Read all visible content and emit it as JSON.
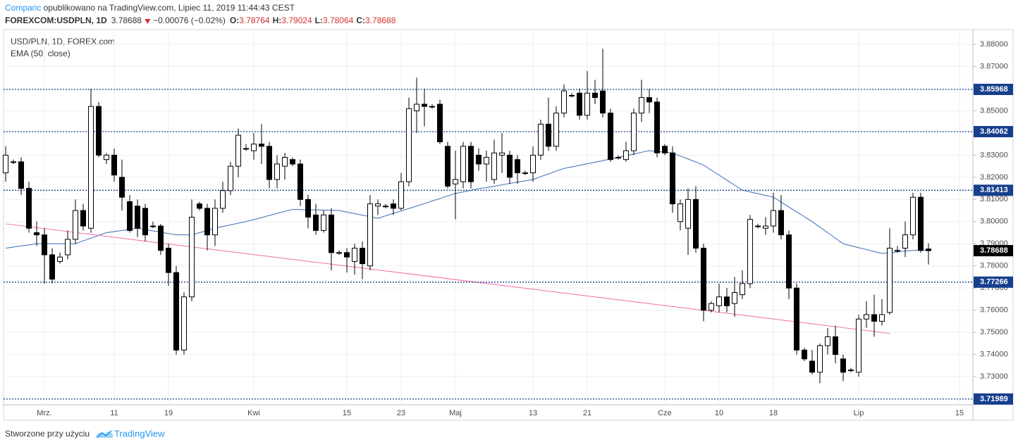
{
  "header": {
    "author": "Comparic",
    "published": " opublikowano na TradingView.com, Lipiec 11, 2019 11:44:43 CEST",
    "symbol": "FOREXCOM:USDPLN, 1D",
    "change": "−0.00076 (−0.02%)",
    "ohlc_labels": [
      "O:",
      "H:",
      "L:",
      "C:"
    ]
  },
  "footer": {
    "made_with": "Stworzone przy użyciu",
    "brand": "TradingView"
  },
  "chart_data": {
    "type": "candlestick",
    "legend": [
      "USD/PLN, 1D, FOREX.com",
      "EMA (50, close)"
    ],
    "up_color": "#ffffff",
    "down_color": "#000000",
    "ema_color": "#3a6db5",
    "categories": [
      null,
      null,
      null,
      null,
      null,
      "Mrz.",
      null,
      null,
      null,
      null,
      null,
      null,
      null,
      null,
      "11",
      null,
      null,
      null,
      null,
      null,
      null,
      "19",
      null,
      null,
      null,
      null,
      null,
      null,
      null,
      null,
      null,
      null,
      "Kwi",
      null,
      null,
      null,
      null,
      null,
      null,
      null,
      null,
      null,
      null,
      null,
      "15",
      null,
      null,
      null,
      null,
      null,
      null,
      "23",
      null,
      null,
      null,
      null,
      null,
      null,
      "Maj",
      null,
      null,
      null,
      null,
      null,
      null,
      null,
      null,
      null,
      "13",
      null,
      null,
      null,
      null,
      null,
      null,
      "21",
      null,
      null,
      null,
      null,
      null,
      null,
      null,
      null,
      null,
      "Cze",
      null,
      null,
      null,
      null,
      null,
      null,
      "10",
      null,
      null,
      null,
      null,
      null,
      null,
      "18",
      null,
      null,
      null,
      null,
      null,
      null,
      null,
      null,
      null,
      null,
      "Lip",
      null,
      null,
      null,
      null,
      null,
      null,
      null,
      null,
      null,
      null,
      null,
      null,
      "15",
      null
    ],
    "open": [
      3.822,
      3.827,
      3.827,
      3.815,
      3.795,
      3.794,
      3.785,
      3.782,
      3.785,
      3.792,
      3.805,
      3.797,
      3.852,
      3.828,
      3.83,
      3.82,
      3.809,
      3.807,
      3.806,
      3.798,
      3.798,
      3.788,
      3.777,
      3.742,
      3.766,
      3.808,
      3.806,
      3.794,
      3.806,
      3.814,
      3.825,
      3.833,
      3.832,
      3.835,
      3.834,
      3.819,
      3.825,
      3.828,
      3.826,
      3.81,
      3.803,
      3.796,
      3.803,
      3.786,
      3.786,
      3.782,
      3.788,
      3.78,
      3.807,
      3.807,
      3.808,
      3.806,
      3.818,
      3.85,
      3.853,
      3.852,
      3.853,
      3.834,
      3.817,
      3.818,
      3.834,
      3.83,
      3.826,
      3.819,
      3.83,
      3.83,
      3.828,
      3.822,
      3.822,
      3.83,
      3.844,
      3.834,
      3.849,
      3.857,
      3.858,
      3.848,
      3.858,
      3.859,
      3.849,
      3.829,
      3.828,
      3.832,
      3.849,
      3.856,
      3.854,
      3.834,
      3.831,
      3.8,
      3.797,
      3.81,
      3.788,
      3.76,
      3.762,
      3.766,
      3.763,
      3.767,
      3.772,
      3.798,
      3.797,
      3.798,
      3.805,
      3.794,
      3.77,
      3.742,
      3.737,
      3.732,
      3.744,
      3.748,
      3.738,
      3.733,
      3.732,
      3.756,
      3.758,
      3.755,
      3.759,
      3.787,
      3.788,
      3.794,
      3.811,
      3.78764,
      null,
      null,
      null,
      null,
      null
    ],
    "high": [
      3.834,
      3.828,
      3.829,
      3.818,
      3.8,
      3.797,
      3.788,
      3.786,
      3.796,
      3.81,
      3.808,
      3.86,
      3.854,
      3.831,
      3.833,
      3.828,
      3.812,
      3.81,
      3.808,
      3.8,
      3.799,
      3.79,
      3.78,
      3.768,
      3.81,
      3.809,
      3.808,
      3.81,
      3.818,
      3.827,
      3.842,
      3.835,
      3.84,
      3.844,
      3.836,
      3.83,
      3.831,
      3.829,
      3.828,
      3.812,
      3.808,
      3.805,
      3.806,
      3.787,
      3.788,
      3.79,
      3.791,
      3.812,
      3.81,
      3.808,
      3.81,
      3.822,
      3.856,
      3.865,
      3.86,
      3.853,
      3.855,
      3.836,
      3.832,
      3.836,
      3.836,
      3.833,
      3.832,
      3.837,
      3.84,
      3.832,
      3.83,
      3.823,
      3.834,
      3.846,
      3.856,
      3.852,
      3.862,
      3.858,
      3.86,
      3.868,
      3.864,
      3.878,
      3.851,
      3.83,
      3.836,
      3.851,
      3.864,
      3.86,
      3.856,
      3.835,
      3.834,
      3.81,
      3.815,
      3.816,
      3.79,
      3.764,
      3.772,
      3.77,
      3.775,
      3.778,
      3.803,
      3.799,
      3.802,
      3.813,
      3.812,
      3.796,
      3.772,
      3.743,
      3.742,
      3.745,
      3.752,
      3.753,
      3.74,
      3.734,
      3.758,
      3.764,
      3.767,
      3.765,
      3.797,
      3.789,
      3.8,
      3.813,
      3.813,
      3.79024,
      null,
      null,
      null,
      null,
      null
    ],
    "low": [
      3.818,
      3.826,
      3.812,
      3.795,
      3.789,
      3.772,
      3.772,
      3.781,
      3.783,
      3.79,
      3.796,
      3.795,
      3.829,
      3.826,
      3.818,
      3.805,
      3.795,
      3.793,
      3.791,
      3.797,
      3.785,
      3.771,
      3.74,
      3.74,
      3.764,
      3.805,
      3.787,
      3.789,
      3.804,
      3.812,
      3.82,
      3.832,
      3.828,
      3.826,
      3.815,
      3.815,
      3.819,
      3.825,
      3.807,
      3.797,
      3.794,
      3.795,
      3.778,
      3.785,
      3.777,
      3.776,
      3.774,
      3.778,
      3.803,
      3.806,
      3.803,
      3.805,
      3.816,
      3.84,
      3.843,
      3.851,
      3.835,
      3.815,
      3.801,
      3.815,
      3.815,
      3.823,
      3.818,
      3.817,
      3.822,
      3.817,
      3.817,
      3.821,
      3.818,
      3.828,
      3.832,
      3.832,
      3.847,
      3.856,
      3.846,
      3.846,
      3.853,
      3.847,
      3.827,
      3.828,
      3.827,
      3.83,
      3.845,
      3.849,
      3.829,
      3.83,
      3.804,
      3.796,
      3.785,
      3.786,
      3.755,
      3.759,
      3.759,
      3.759,
      3.757,
      3.765,
      3.77,
      3.797,
      3.794,
      3.795,
      3.792,
      3.765,
      3.74,
      3.737,
      3.731,
      3.727,
      3.74,
      3.736,
      3.728,
      3.732,
      3.73,
      3.752,
      3.748,
      3.753,
      3.758,
      3.786,
      3.784,
      3.792,
      3.786,
      3.78064,
      null,
      null,
      null,
      null,
      null
    ],
    "close": [
      3.83,
      3.827,
      3.815,
      3.797,
      3.794,
      3.785,
      3.774,
      3.784,
      3.792,
      3.805,
      3.798,
      3.852,
      3.83,
      3.83,
      3.821,
      3.811,
      3.796,
      3.797,
      3.794,
      3.798,
      3.787,
      3.777,
      3.742,
      3.766,
      3.802,
      3.806,
      3.794,
      3.806,
      3.814,
      3.825,
      3.839,
      3.833,
      3.835,
      3.834,
      3.819,
      3.826,
      3.829,
      3.826,
      3.81,
      3.802,
      3.796,
      3.803,
      3.786,
      3.786,
      3.784,
      3.788,
      3.781,
      3.808,
      3.808,
      3.807,
      3.806,
      3.818,
      3.851,
      3.853,
      3.852,
      3.852,
      3.836,
      3.816,
      3.819,
      3.834,
      3.818,
      3.826,
      3.829,
      3.831,
      3.831,
      3.82,
      3.822,
      3.822,
      3.83,
      3.844,
      3.834,
      3.849,
      3.859,
      3.857,
      3.848,
      3.858,
      3.856,
      3.849,
      3.828,
      3.829,
      3.832,
      3.849,
      3.856,
      3.854,
      3.831,
      3.831,
      3.808,
      3.808,
      3.81,
      3.788,
      3.76,
      3.763,
      3.766,
      3.762,
      3.768,
      3.772,
      3.801,
      3.798,
      3.798,
      3.805,
      3.794,
      3.77,
      3.742,
      3.738,
      3.732,
      3.744,
      3.748,
      3.74,
      3.732,
      3.733,
      3.756,
      3.758,
      3.755,
      3.758,
      3.788,
      3.787,
      3.794,
      3.811,
      3.787,
      3.78688,
      null,
      null,
      null,
      null,
      null
    ],
    "ema": [
      3.788,
      3.7885,
      3.789,
      3.7895,
      3.79,
      3.79,
      3.79,
      3.79,
      3.79,
      3.79,
      3.7913,
      3.7925,
      3.7938,
      3.795,
      3.7955,
      3.796,
      3.7965,
      3.797,
      3.7964,
      3.7958,
      3.7952,
      3.7946,
      3.794,
      3.794,
      3.794,
      3.795,
      3.796,
      3.797,
      3.7978,
      3.7985,
      3.7993,
      3.8,
      3.8009,
      3.8018,
      3.8028,
      3.8037,
      3.8046,
      3.8055,
      3.8054,
      3.8053,
      3.8053,
      3.8052,
      3.8051,
      3.805,
      3.8043,
      3.8036,
      3.8029,
      3.8022,
      3.8015,
      3.8026,
      3.8037,
      3.8048,
      3.8059,
      3.807,
      3.8081,
      3.8093,
      3.8104,
      3.8116,
      3.8127,
      3.8134,
      3.8141,
      3.8149,
      3.8153,
      3.816,
      3.8166,
      3.8172,
      3.8178,
      3.8184,
      3.819,
      3.8203,
      3.8215,
      3.8228,
      3.824,
      3.8247,
      3.8254,
      3.8261,
      3.8268,
      3.8275,
      3.8283,
      3.829,
      3.8298,
      3.8305,
      3.8313,
      3.832,
      3.8317,
      3.8313,
      3.831,
      3.8296,
      3.8283,
      3.8269,
      3.8255,
      3.8232,
      3.821,
      3.8187,
      3.8165,
      3.8142,
      3.8134,
      3.8126,
      3.8118,
      3.811,
      3.8088,
      3.8066,
      3.8044,
      3.8022,
      3.8,
      3.7975,
      3.795,
      3.7925,
      3.79,
      3.7891,
      3.7882,
      3.7874,
      3.7865,
      3.7856,
      3.786,
      3.7863,
      3.7867,
      3.787,
      3.787,
      3.787,
      null,
      null,
      null,
      null,
      null
    ],
    "levels": [
      3.85968,
      3.84062,
      3.81413,
      3.77266,
      3.71989
    ],
    "level_color": "#163f8c",
    "trendline": {
      "color": "#f06ba8",
      "x": [
        0,
        114
      ],
      "y": [
        3.799,
        3.7495
      ]
    },
    "ylim": [
      3.7173,
      3.8867
    ],
    "yticks": [
      {
        "value": 3.73,
        "label": "3.73000"
      },
      {
        "value": 3.74,
        "label": "3.74000"
      },
      {
        "value": 3.75,
        "label": "3.75000"
      },
      {
        "value": 3.76,
        "label": "3.76000"
      },
      {
        "value": 3.77,
        "label": "3.77000"
      },
      {
        "value": 3.78,
        "label": "3.78000"
      },
      {
        "value": 3.79,
        "label": "3.79000"
      },
      {
        "value": 3.8,
        "label": "3.80000"
      },
      {
        "value": 3.81,
        "label": "3.81000"
      },
      {
        "value": 3.82,
        "label": "3.82000"
      },
      {
        "value": 3.83,
        "label": "3.83000"
      },
      {
        "value": 3.85,
        "label": "3.85000"
      },
      {
        "value": 3.87,
        "label": "3.87000"
      },
      {
        "value": 3.88,
        "label": "3.88000"
      }
    ],
    "grid": true
  }
}
